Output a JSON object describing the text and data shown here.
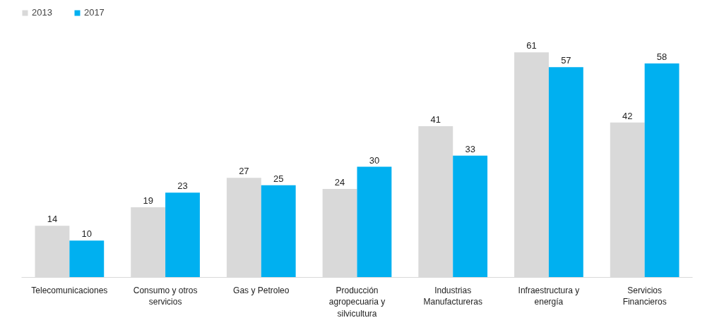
{
  "chart_data": {
    "type": "bar",
    "categories": [
      "Telecomunicaciones",
      "Consumo y otros servicios",
      "Gas y Petroleo",
      "Producción agropecuaria y silvicultura",
      "Industrias Manufactureras",
      "Infraestructura y energía",
      "Servicios Financieros"
    ],
    "series": [
      {
        "name": "2013",
        "color": "#d9d9d9",
        "values": [
          14,
          19,
          27,
          24,
          41,
          61,
          42
        ]
      },
      {
        "name": "2017",
        "color": "#00b0f0",
        "values": [
          10,
          23,
          25,
          30,
          33,
          57,
          58
        ]
      }
    ],
    "data_labels": true,
    "legend": "top left",
    "grid": false
  }
}
